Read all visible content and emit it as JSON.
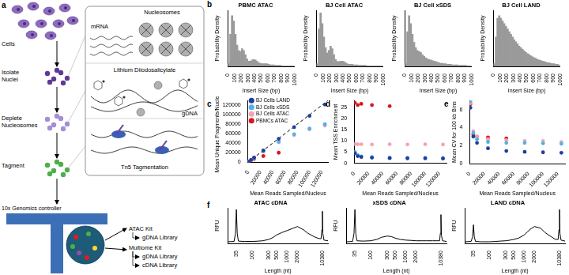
{
  "diagram": {
    "panel": "a",
    "steps": [
      "Cells",
      "Isolate Nuclei",
      "Deplete Nucleosomes",
      "Tagment"
    ],
    "insets": {
      "nucleosomes": "Nucleosomes",
      "mrna": "mRNA",
      "reagent": "Lithium Diiodosalicylate",
      "gdna": "gDNA",
      "tn5": "Tn5 Tagmentation"
    },
    "controller": "10x Genomics controller",
    "kits": [
      {
        "name": "ATAC Kit",
        "libraries": [
          "gDNA Library"
        ]
      },
      {
        "name": "Multiome Kit",
        "libraries": [
          "gDNA Library",
          "cDNA Library"
        ]
      }
    ]
  },
  "chart_data": [
    {
      "type": "histogram",
      "panel": "b",
      "title": "PBMC ATAC",
      "x_label": "Insert Size (bp)",
      "y_label": "Probability Density",
      "color": "#9a9a9a",
      "bins": [
        0,
        25,
        50,
        75,
        100,
        125,
        150,
        175,
        200,
        225,
        250,
        275,
        300,
        325,
        350,
        375,
        400,
        425,
        450,
        475,
        500,
        525,
        550,
        575,
        600,
        625,
        650,
        675,
        700,
        725,
        750,
        775,
        800,
        825,
        850,
        875,
        900,
        925,
        950,
        975,
        1000
      ],
      "values": [
        0.05,
        0.6,
        0.95,
        0.85,
        0.6,
        0.4,
        0.3,
        0.28,
        0.33,
        0.3,
        0.22,
        0.14,
        0.1,
        0.1,
        0.12,
        0.13,
        0.12,
        0.1,
        0.07,
        0.06,
        0.05,
        0.05,
        0.05,
        0.05,
        0.04,
        0.03,
        0.03,
        0.03,
        0.02,
        0.02,
        0.02,
        0.02,
        0.01,
        0.01,
        0.01,
        0.01,
        0.01,
        0.01,
        0.01,
        0.01
      ],
      "xlim": [
        0,
        1000
      ],
      "xticks": [
        0,
        100,
        200,
        300,
        400,
        500,
        600,
        700,
        800,
        900,
        1000
      ],
      "ylim": [
        0,
        1.05
      ],
      "tick_labels": "x",
      "grid": false
    },
    {
      "type": "histogram",
      "title": "BJ Cell ATAC",
      "x_label": "Insert Size (bp)",
      "y_label": "Probability Density",
      "color": "#9a9a9a",
      "bins": [
        0,
        25,
        50,
        75,
        100,
        125,
        150,
        175,
        200,
        225,
        250,
        275,
        300,
        325,
        350,
        375,
        400,
        425,
        450,
        475,
        500,
        525,
        550,
        575,
        600,
        625,
        650,
        675,
        700,
        725,
        750,
        775,
        800,
        825,
        850,
        875,
        900,
        925,
        950,
        975,
        1000
      ],
      "values": [
        0.05,
        0.7,
        1.0,
        0.8,
        0.55,
        0.35,
        0.25,
        0.3,
        0.38,
        0.33,
        0.22,
        0.13,
        0.09,
        0.09,
        0.1,
        0.1,
        0.09,
        0.07,
        0.05,
        0.04,
        0.04,
        0.04,
        0.03,
        0.03,
        0.03,
        0.02,
        0.02,
        0.02,
        0.02,
        0.02,
        0.01,
        0.01,
        0.01,
        0.01,
        0.01,
        0.01,
        0.01,
        0.01,
        0.01,
        0.01
      ],
      "xlim": [
        0,
        1000
      ],
      "xticks": [
        0,
        100,
        200,
        300,
        400,
        500,
        600,
        700,
        800,
        900,
        1000
      ],
      "ylim": [
        0,
        1.05
      ],
      "tick_labels": "x",
      "grid": false
    },
    {
      "type": "histogram",
      "title": "BJ Cell xSDS",
      "x_label": "Insert Size (bp)",
      "y_label": "Probability Density",
      "color": "#9a9a9a",
      "bins": [
        0,
        25,
        50,
        75,
        100,
        125,
        150,
        175,
        200,
        225,
        250,
        275,
        300,
        325,
        350,
        375,
        400,
        425,
        450,
        475,
        500,
        525,
        550,
        575,
        600,
        625,
        650,
        675,
        700,
        725,
        750,
        775,
        800,
        825,
        850,
        875,
        900,
        925,
        950,
        975,
        1000
      ],
      "values": [
        0.05,
        0.65,
        0.95,
        0.8,
        0.6,
        0.45,
        0.35,
        0.3,
        0.28,
        0.26,
        0.22,
        0.19,
        0.16,
        0.14,
        0.13,
        0.12,
        0.11,
        0.1,
        0.09,
        0.08,
        0.07,
        0.06,
        0.06,
        0.05,
        0.05,
        0.04,
        0.04,
        0.04,
        0.03,
        0.03,
        0.03,
        0.03,
        0.02,
        0.02,
        0.02,
        0.02,
        0.02,
        0.01,
        0.01,
        0.01
      ],
      "xlim": [
        0,
        1000
      ],
      "xticks": [
        0,
        100,
        200,
        300,
        400,
        500,
        600,
        700,
        800,
        900,
        1000
      ],
      "ylim": [
        0,
        1.05
      ],
      "tick_labels": "x",
      "grid": false
    },
    {
      "type": "histogram",
      "title": "BJ Cell LAND",
      "x_label": "Insert Size (bp)",
      "y_label": "Probability Density",
      "color": "#9a9a9a",
      "bins": [
        0,
        25,
        50,
        75,
        100,
        125,
        150,
        175,
        200,
        225,
        250,
        275,
        300,
        325,
        350,
        375,
        400,
        425,
        450,
        475,
        500,
        525,
        550,
        575,
        600,
        625,
        650,
        675,
        700,
        725,
        750,
        775,
        800,
        825,
        850,
        875,
        900,
        925,
        950,
        975,
        1000
      ],
      "values": [
        0.05,
        0.55,
        0.9,
        0.95,
        0.9,
        0.85,
        0.8,
        0.75,
        0.7,
        0.65,
        0.6,
        0.55,
        0.5,
        0.46,
        0.42,
        0.38,
        0.35,
        0.32,
        0.29,
        0.26,
        0.24,
        0.22,
        0.2,
        0.18,
        0.16,
        0.15,
        0.13,
        0.12,
        0.11,
        0.1,
        0.09,
        0.08,
        0.07,
        0.07,
        0.06,
        0.05,
        0.05,
        0.04,
        0.04,
        0.03
      ],
      "xlim": [
        0,
        1000
      ],
      "xticks": [
        0,
        100,
        200,
        300,
        400,
        500,
        600,
        700,
        800,
        900,
        1000
      ],
      "ylim": [
        0,
        1.05
      ],
      "tick_labels": "x",
      "grid": false
    },
    {
      "type": "scatter",
      "panel": "c",
      "x_label": "Mean Reads Sampled/Nucleus",
      "y_label": "Mean Unique Fragments/Nucleus",
      "marker": "circle",
      "legend": "upper left",
      "grid": false,
      "xlim": [
        0,
        130000
      ],
      "xticks": [
        0,
        20000,
        40000,
        60000,
        80000,
        100000,
        120000
      ],
      "ylim": [
        0,
        130000
      ],
      "yticks": [
        0,
        20000,
        40000,
        60000,
        80000,
        100000,
        120000
      ],
      "series": [
        {
          "name": "BJ Cells LAND",
          "color": "#1f3f9e",
          "x": [
            1000,
            5000,
            10000,
            25000,
            50000,
            75000,
            100000,
            125000
          ],
          "values": [
            990,
            4950,
            9900,
            24700,
            49300,
            73800,
            97500,
            121500
          ]
        },
        {
          "name": "BJ Cells xSDS",
          "color": "#4db3e6",
          "x": [
            1000,
            5000,
            10000,
            25000,
            50000,
            75000,
            100000,
            125000
          ],
          "values": [
            980,
            4800,
            9500,
            23000,
            43000,
            59000,
            71000,
            80000
          ]
        },
        {
          "name": "BJ Cells ATAC",
          "color": "#f4a3b4",
          "x": [
            1000,
            5000,
            10000,
            25000,
            50000,
            75000,
            100000,
            125000
          ],
          "values": [
            970,
            4700,
            9300,
            22500,
            42000,
            57000,
            69000,
            77000
          ]
        },
        {
          "name": "PBMCs ATAC",
          "color": "#d7191c",
          "x": [
            1000,
            5000,
            10000,
            25000,
            50000
          ],
          "values": [
            900,
            4000,
            7000,
            13000,
            20000
          ]
        }
      ],
      "reference_line": {
        "x": [
          0,
          130000
        ],
        "values": [
          0,
          130000
        ],
        "color": "#000000",
        "line_style": "dashed"
      }
    },
    {
      "type": "scatter",
      "panel": "d",
      "x_label": "Mean Reads Sampled/Nucleus",
      "y_label": "Mean TSS Enrichment",
      "marker": "circle",
      "grid": false,
      "xlim": [
        0,
        130000
      ],
      "xticks": [
        0,
        20000,
        40000,
        60000,
        80000,
        100000,
        120000
      ],
      "ylim": [
        0,
        28
      ],
      "yticks": [
        0,
        5,
        10,
        15,
        20,
        25
      ],
      "series": [
        {
          "name": "BJ Cells LAND",
          "color": "#1f3f9e",
          "x": [
            1000,
            5000,
            10000,
            25000,
            50000,
            75000,
            100000,
            125000
          ],
          "values": [
            4.5,
            3.2,
            2.8,
            2.5,
            2.3,
            2.2,
            2.2,
            2.1
          ]
        },
        {
          "name": "BJ Cells xSDS",
          "color": "#4db3e6",
          "x": [
            1000,
            5000,
            10000,
            25000,
            50000,
            75000,
            100000,
            125000
          ],
          "values": [
            5.0,
            3.6,
            3.1,
            2.8,
            2.6,
            2.5,
            2.5,
            2.4
          ]
        },
        {
          "name": "BJ Cells ATAC",
          "color": "#f4a3b4",
          "x": [
            1000,
            5000,
            10000,
            25000,
            50000,
            75000,
            100000,
            125000
          ],
          "values": [
            8.6,
            8.5,
            8.5,
            8.4,
            8.5,
            8.4,
            8.5,
            8.4
          ]
        },
        {
          "name": "PBMCs ATAC",
          "color": "#d7191c",
          "x": [
            1000,
            5000,
            10000,
            25000,
            50000
          ],
          "values": [
            27,
            26,
            26.5,
            26,
            25.5
          ]
        }
      ]
    },
    {
      "type": "scatter",
      "panel": "e",
      "x_label": "Mean Reads Sampled/Nucleus",
      "y_label": "Mean CV for 100 kb Bins",
      "marker": "circle",
      "grid": false,
      "xlim": [
        0,
        130000
      ],
      "xticks": [
        0,
        20000,
        40000,
        60000,
        80000,
        100000,
        120000
      ],
      "ylim": [
        0,
        7
      ],
      "yticks": [
        0,
        2,
        4,
        6
      ],
      "series": [
        {
          "name": "BJ Cells LAND",
          "color": "#1f3f9e",
          "x": [
            1000,
            5000,
            10000,
            25000,
            50000,
            75000,
            100000,
            125000
          ],
          "values": [
            6.2,
            3.0,
            2.3,
            1.7,
            1.4,
            1.3,
            1.25,
            1.2
          ]
        },
        {
          "name": "BJ Cells xSDS",
          "color": "#4db3e6",
          "x": [
            1000,
            5000,
            10000,
            25000,
            50000,
            75000,
            100000,
            125000
          ],
          "values": [
            6.9,
            3.4,
            2.7,
            2.4,
            2.3,
            2.3,
            2.25,
            2.2
          ]
        },
        {
          "name": "BJ Cells ATAC",
          "color": "#f4a3b4",
          "x": [
            1000,
            5000,
            10000,
            25000,
            50000,
            75000,
            100000,
            125000
          ],
          "values": [
            6.7,
            3.6,
            3.0,
            2.7,
            2.6,
            2.5,
            2.5,
            2.4
          ]
        },
        {
          "name": "PBMCs ATAC",
          "color": "#d7191c",
          "x": [
            1000,
            5000,
            10000,
            25000,
            50000
          ],
          "values": [
            6.6,
            3.2,
            3.0,
            2.9,
            2.8
          ]
        }
      ]
    },
    {
      "type": "line",
      "panel": "f",
      "title": "ATAC cDNA",
      "x_label": "Length (nt)",
      "y_label": "RFU",
      "color": "#000000",
      "log": "x",
      "grid": false,
      "tick_labels": "x",
      "x": [
        20,
        30,
        33,
        35,
        37,
        40,
        60,
        100,
        150,
        200,
        300,
        400,
        500,
        700,
        1000,
        1500,
        2000,
        3000,
        4000,
        6000,
        8000,
        9500,
        10000,
        10380,
        10700,
        11500,
        15000
      ],
      "values": [
        0.05,
        0.06,
        0.3,
        1.0,
        0.3,
        0.07,
        0.06,
        0.06,
        0.07,
        0.08,
        0.12,
        0.18,
        0.25,
        0.32,
        0.38,
        0.45,
        0.5,
        0.4,
        0.3,
        0.2,
        0.15,
        0.14,
        0.4,
        0.95,
        0.3,
        0.1,
        0.08
      ],
      "xlim": [
        20,
        15000
      ],
      "xticks": [
        35,
        100,
        300,
        500,
        1000,
        2000,
        10380
      ],
      "ylim": [
        0,
        1.05
      ]
    },
    {
      "type": "line",
      "title": "xSDS cDNA",
      "x_label": "Length (nt)",
      "y_label": "RFU",
      "color": "#000000",
      "log": "x",
      "grid": false,
      "tick_labels": "x",
      "x": [
        20,
        30,
        33,
        35,
        37,
        40,
        60,
        100,
        150,
        200,
        300,
        400,
        500,
        700,
        1000,
        1500,
        2000,
        3000,
        4000,
        6000,
        8000,
        9500,
        10000,
        10380,
        10700,
        11500,
        15000
      ],
      "values": [
        0.05,
        0.06,
        0.3,
        1.0,
        0.3,
        0.08,
        0.07,
        0.08,
        0.12,
        0.18,
        0.22,
        0.2,
        0.16,
        0.12,
        0.1,
        0.09,
        0.08,
        0.08,
        0.08,
        0.08,
        0.08,
        0.08,
        0.3,
        0.85,
        0.25,
        0.08,
        0.06
      ],
      "xlim": [
        20,
        15000
      ],
      "xticks": [
        35,
        100,
        300,
        500,
        1000,
        2000,
        10380
      ],
      "ylim": [
        0,
        1.05
      ]
    },
    {
      "type": "line",
      "title": "LAND cDNA",
      "x_label": "Length (nt)",
      "y_label": "RFU",
      "color": "#000000",
      "log": "x",
      "grid": false,
      "tick_labels": "x",
      "x": [
        20,
        30,
        33,
        35,
        37,
        40,
        60,
        100,
        150,
        200,
        300,
        400,
        500,
        700,
        1000,
        1500,
        2000,
        3000,
        4000,
        6000,
        8000,
        9500,
        10000,
        10380,
        10700,
        11500,
        15000
      ],
      "values": [
        0.05,
        0.06,
        0.2,
        0.55,
        0.2,
        0.06,
        0.05,
        0.05,
        0.06,
        0.07,
        0.08,
        0.1,
        0.12,
        0.16,
        0.25,
        0.42,
        0.5,
        0.45,
        0.32,
        0.2,
        0.12,
        0.12,
        0.4,
        1.0,
        0.3,
        0.1,
        0.07
      ],
      "xlim": [
        20,
        15000
      ],
      "xticks": [
        35,
        100,
        300,
        500,
        1000,
        2000,
        10380
      ],
      "ylim": [
        0,
        1.05
      ]
    }
  ]
}
